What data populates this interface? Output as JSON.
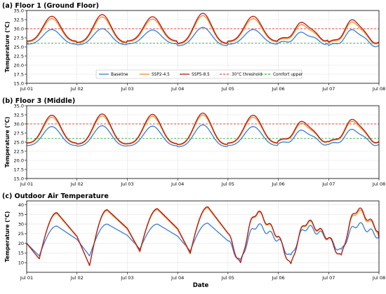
{
  "figure": {
    "xlabel": "Date",
    "x_ticks": [
      "Jul 01",
      "Jul 02",
      "Jul 03",
      "Jul 04",
      "Jul 05",
      "Jul 06",
      "Jul 07",
      "Jul 08"
    ]
  },
  "chart_data": [
    {
      "type": "line",
      "title": "(a) Floor 1 (Ground Floor)",
      "ylabel": "Temperature (°C)",
      "xlim": [
        "Jul 01",
        "Jul 08"
      ],
      "ylim": [
        15.0,
        35.0
      ],
      "yticks": [
        "15.0",
        "17.5",
        "20.0",
        "22.5",
        "25.0",
        "27.5",
        "30.0",
        "32.5",
        "35.0"
      ],
      "grid": true,
      "legend": "bottom-center",
      "reference_lines": [
        {
          "name": "30°C threshold",
          "y": 30.0,
          "color": "#ee4444",
          "style": "dashed"
        },
        {
          "name": "Comfort upper",
          "y": 26.0,
          "color": "#22aa33",
          "style": "dashed"
        }
      ],
      "series": [
        {
          "name": "Baseline",
          "color": "#3a7dd8",
          "mean": 27.4,
          "amplitude": 2.0,
          "daily_amplitude": [
            2.0,
            2.2,
            1.9,
            2.5,
            2.0,
            1.4,
            2.1
          ],
          "daily_offset": [
            0,
            0,
            0,
            0,
            0,
            -0.2,
            -0.3
          ]
        },
        {
          "name": "SSP2-4.5",
          "color": "#ff8c1a",
          "mean": 29.0,
          "amplitude": 3.2,
          "daily_amplitude": [
            3.2,
            3.6,
            3.1,
            3.9,
            3.2,
            2.1,
            2.8
          ],
          "daily_offset": [
            0,
            0,
            0,
            0,
            0,
            -0.5,
            -0.6
          ]
        },
        {
          "name": "SSP5-8.5",
          "color": "#b01a1a",
          "mean": 29.4,
          "amplitude": 3.4,
          "daily_amplitude": [
            3.4,
            3.8,
            3.3,
            4.1,
            3.4,
            2.3,
            3.0
          ],
          "daily_offset": [
            0,
            0,
            0,
            0,
            0,
            -0.5,
            -0.6
          ]
        }
      ]
    },
    {
      "type": "line",
      "title": "(b) Floor 3 (Middle)",
      "ylabel": "Temperature (°C)",
      "xlim": [
        "Jul 01",
        "Jul 08"
      ],
      "ylim": [
        15.0,
        35.0
      ],
      "yticks": [
        "15.0",
        "17.5",
        "20.0",
        "22.5",
        "25.0",
        "27.5",
        "30.0",
        "32.5",
        "35.0"
      ],
      "grid": true,
      "reference_lines": [
        {
          "name": "30°C threshold",
          "y": 30.0,
          "color": "#ee4444",
          "style": "dashed"
        },
        {
          "name": "Comfort upper",
          "y": 26.0,
          "color": "#22aa33",
          "style": "dashed"
        }
      ],
      "series": [
        {
          "name": "Baseline",
          "color": "#3a7dd8",
          "mean": 26.2,
          "amplitude": 2.6,
          "daily_amplitude": [
            2.6,
            2.8,
            2.7,
            3.0,
            2.6,
            1.8,
            2.0
          ],
          "daily_offset": [
            0,
            0,
            0,
            0,
            0,
            -0.2,
            -0.2
          ]
        },
        {
          "name": "SSP2-4.5",
          "color": "#ff8c1a",
          "mean": 27.6,
          "amplitude": 3.6,
          "daily_amplitude": [
            3.6,
            3.9,
            3.8,
            4.1,
            3.6,
            2.4,
            2.8
          ],
          "daily_offset": [
            0,
            0,
            0,
            0,
            0,
            -0.4,
            -0.3
          ]
        },
        {
          "name": "SSP5-8.5",
          "color": "#b01a1a",
          "mean": 27.9,
          "amplitude": 3.8,
          "daily_amplitude": [
            3.8,
            4.1,
            4.0,
            4.3,
            3.8,
            2.6,
            3.0
          ],
          "daily_offset": [
            0,
            0,
            0,
            0,
            0,
            -0.4,
            -0.3
          ]
        }
      ]
    },
    {
      "type": "line",
      "title": "(c) Outdoor Air Temperature",
      "ylabel": "Temperature (°C)",
      "xlim": [
        "Jul 01",
        "Jul 08"
      ],
      "ylim": [
        5,
        42
      ],
      "yticks": [
        "10",
        "15",
        "20",
        "25",
        "30",
        "35",
        "40"
      ],
      "grid": true,
      "series": [
        {
          "name": "Baseline",
          "color": "#3a7dd8",
          "low": [
            13.5,
            13.5,
            17.0,
            16.0,
            10.0,
            12.5,
            15.5
          ],
          "high": [
            29.0,
            30.0,
            30.0,
            30.5,
            29.5,
            28.5,
            30.0
          ]
        },
        {
          "name": "SSP2-4.5",
          "color": "#ff8c1a",
          "low": [
            12.0,
            8.5,
            15.5,
            14.5,
            8.5,
            8.0,
            12.5
          ],
          "high": [
            35.5,
            37.0,
            37.5,
            38.5,
            36.0,
            31.0,
            37.0
          ]
        },
        {
          "name": "SSP5-8.5",
          "color": "#b01a1a",
          "low": [
            12.0,
            8.5,
            16.0,
            15.0,
            8.5,
            8.0,
            12.5
          ],
          "high": [
            36.0,
            37.5,
            38.0,
            39.0,
            36.5,
            31.5,
            38.0
          ]
        }
      ]
    }
  ]
}
